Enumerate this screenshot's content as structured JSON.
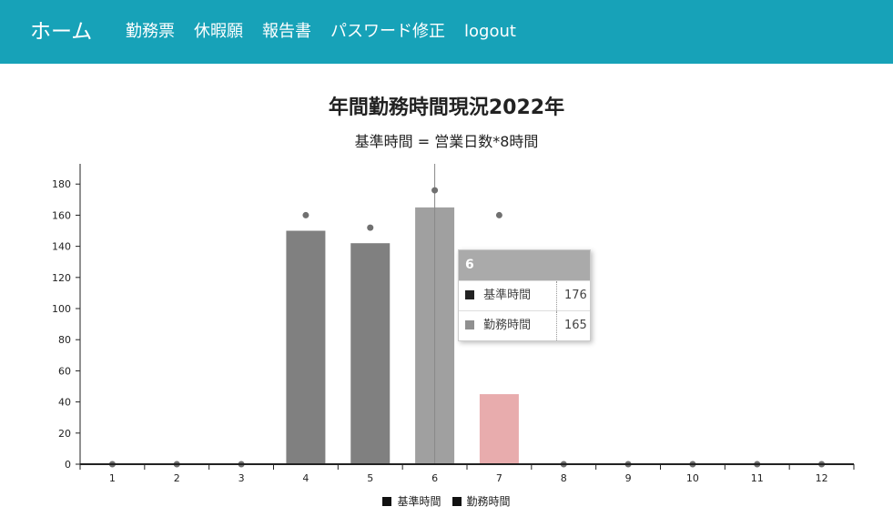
{
  "nav": {
    "brand": "ホーム",
    "links": [
      "勤務票",
      "休暇願",
      "報告書",
      "パスワード修正",
      "logout"
    ]
  },
  "chart_data": {
    "type": "bar",
    "title": "年間勤務時間現況2022年",
    "subtitle": "基準時間 = 営業日数*8時間",
    "categories": [
      "1",
      "2",
      "3",
      "4",
      "5",
      "6",
      "7",
      "8",
      "9",
      "10",
      "11",
      "12"
    ],
    "series": [
      {
        "name": "基準時間",
        "type": "scatter",
        "values": [
          0,
          0,
          0,
          160,
          152,
          176,
          160,
          0,
          0,
          0,
          0,
          0
        ]
      },
      {
        "name": "勤務時間",
        "type": "bar",
        "values": [
          0,
          0,
          0,
          150,
          142,
          165,
          45,
          0,
          0,
          0,
          0,
          0
        ]
      }
    ],
    "y_ticks": [
      0,
      20,
      40,
      60,
      80,
      100,
      120,
      140,
      160,
      180
    ],
    "ylim": [
      0,
      193
    ],
    "grid": false,
    "legend": "bottom-center",
    "colors": {
      "bar": "#808080",
      "bar_highlight": "#a0a0a0",
      "bar_under": "#e8acad",
      "point": "#707070"
    }
  },
  "tooltip": {
    "header": "6",
    "rows": [
      {
        "name": "基準時間",
        "value": "176",
        "color": "#222222"
      },
      {
        "name": "勤務時間",
        "value": "165",
        "color": "#909090"
      }
    ]
  },
  "legend": [
    {
      "label": "基準時間",
      "color": "#111111"
    },
    {
      "label": "勤務時間",
      "color": "#111111"
    }
  ]
}
